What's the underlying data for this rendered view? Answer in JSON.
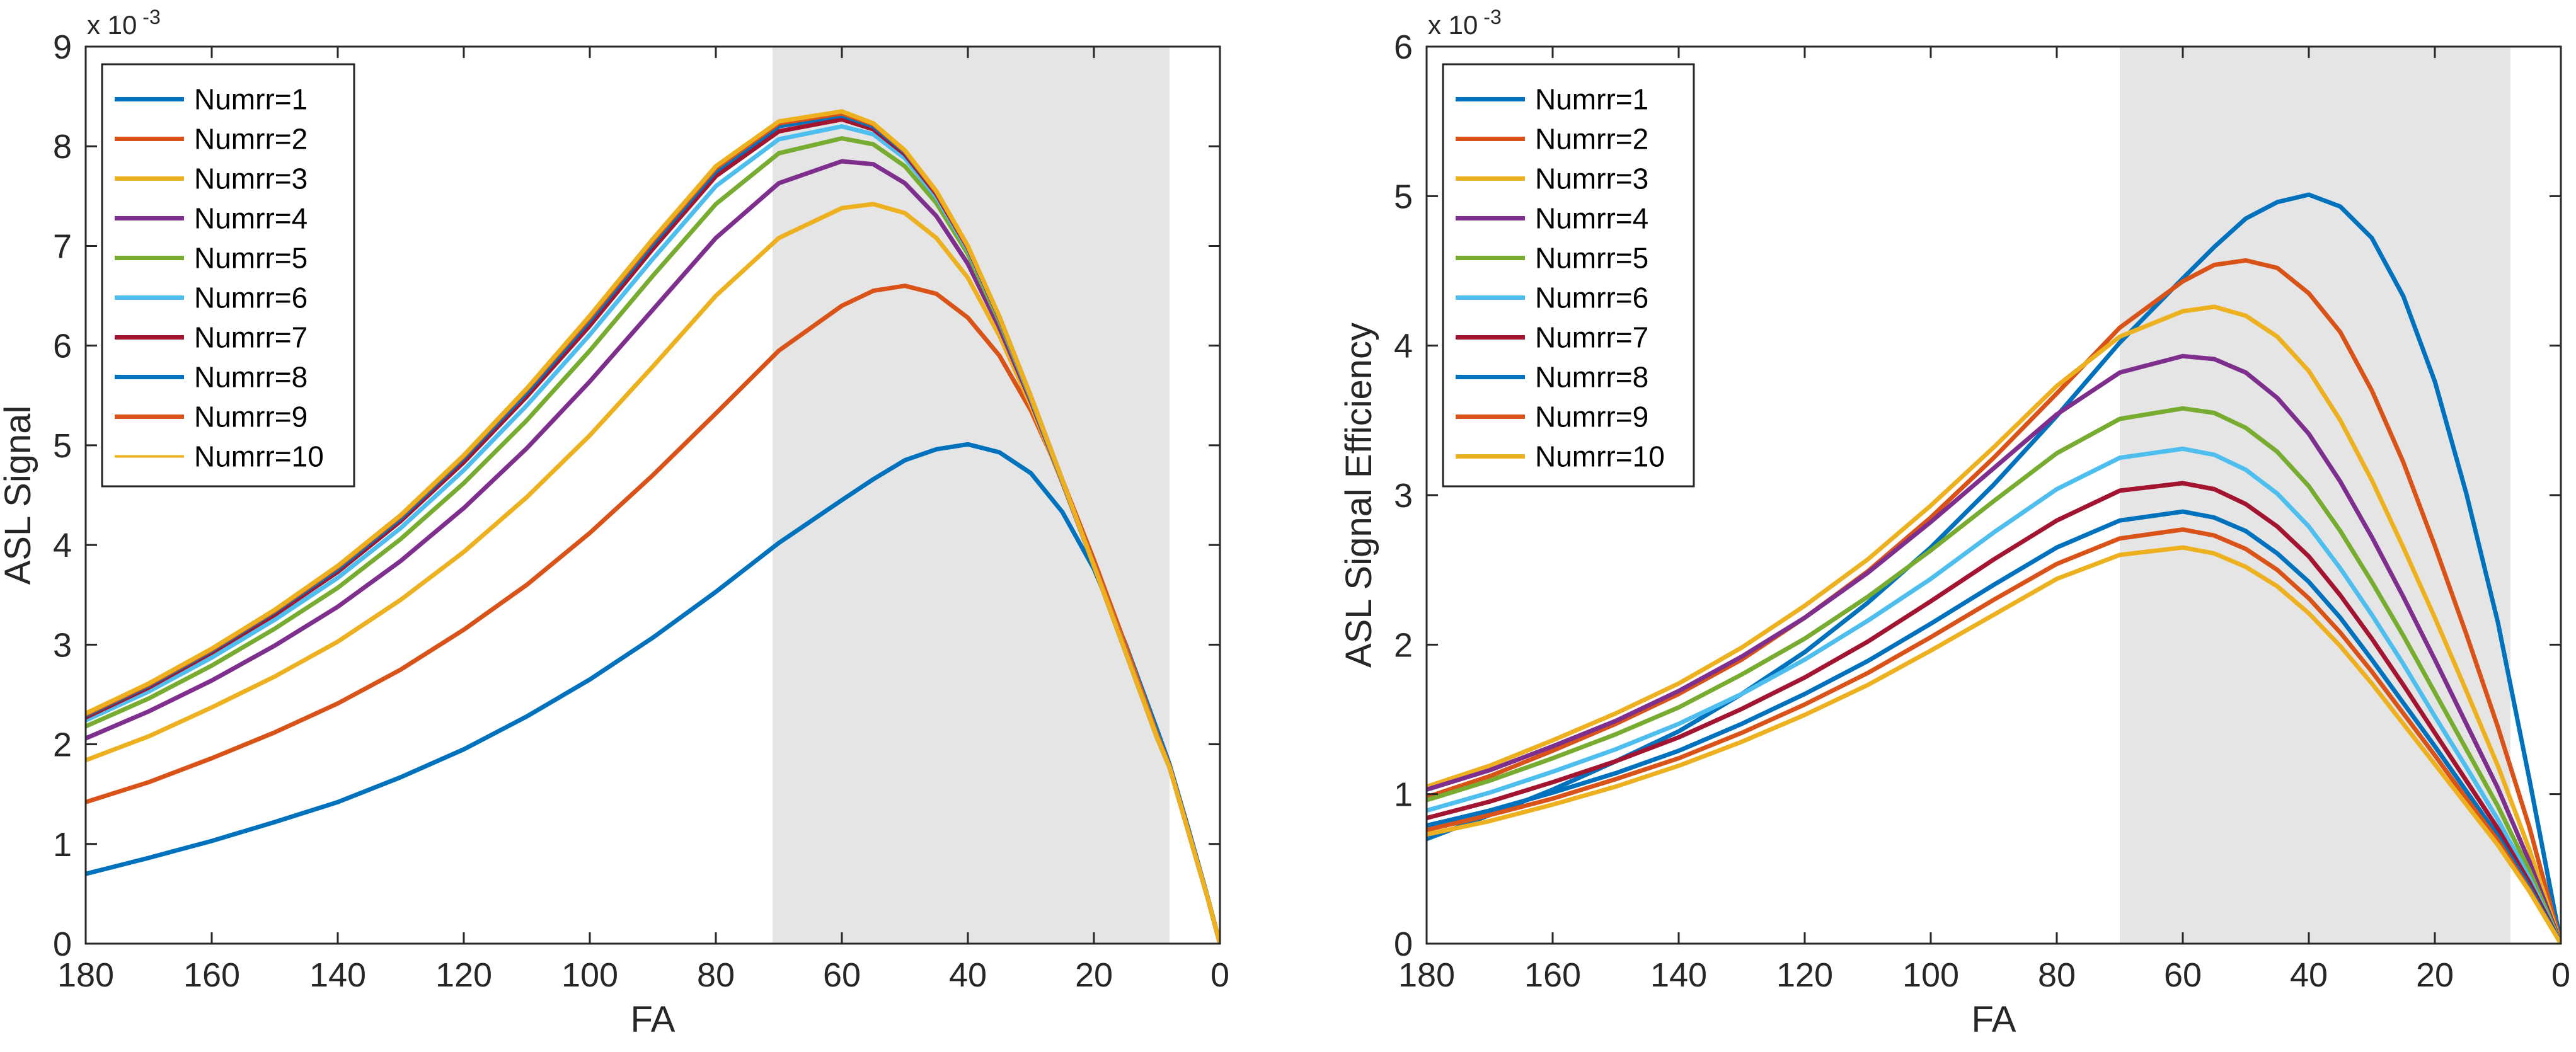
{
  "chart_data": [
    {
      "type": "line",
      "xlabel": "FA",
      "ylabel": "ASL Signal",
      "exponent_label": "x 10",
      "exponent_power": "-3",
      "xlim": [
        180,
        0
      ],
      "ylim": [
        0,
        9
      ],
      "xticks": [
        "180",
        "160",
        "140",
        "120",
        "100",
        "80",
        "60",
        "40",
        "20",
        "0"
      ],
      "yticks": [
        "0",
        "1",
        "2",
        "3",
        "4",
        "5",
        "6",
        "7",
        "8",
        "9"
      ],
      "shaded_x_range": [
        71,
        8
      ],
      "x": [
        180,
        170,
        160,
        150,
        140,
        130,
        120,
        110,
        100,
        90,
        80,
        70,
        60,
        55,
        50,
        45,
        40,
        35,
        30,
        25,
        20,
        15,
        10,
        8,
        5,
        2,
        0
      ],
      "series": [
        {
          "name": "Numrr=1",
          "color": "#0072BD",
          "width": 7,
          "values": [
            0.7,
            0.86,
            1.03,
            1.22,
            1.42,
            1.67,
            1.95,
            2.28,
            2.65,
            3.07,
            3.53,
            4.02,
            4.45,
            4.66,
            4.85,
            4.96,
            5.01,
            4.93,
            4.72,
            4.33,
            3.76,
            3.01,
            2.15,
            1.8,
            1.15,
            0.48,
            0.0
          ]
        },
        {
          "name": "Numrr=2",
          "color": "#D95319",
          "width": 7,
          "values": [
            1.42,
            1.62,
            1.86,
            2.12,
            2.41,
            2.75,
            3.15,
            3.6,
            4.12,
            4.7,
            5.32,
            5.95,
            6.4,
            6.55,
            6.6,
            6.52,
            6.28,
            5.9,
            5.35,
            4.65,
            3.85,
            3.0,
            2.1,
            1.78,
            1.13,
            0.47,
            0.0
          ]
        },
        {
          "name": "Numrr=3",
          "color": "#EDB120",
          "width": 7,
          "values": [
            1.84,
            2.08,
            2.37,
            2.68,
            3.03,
            3.45,
            3.93,
            4.48,
            5.1,
            5.79,
            6.5,
            7.08,
            7.38,
            7.42,
            7.33,
            7.08,
            6.68,
            6.1,
            5.4,
            4.62,
            3.8,
            2.95,
            2.08,
            1.77,
            1.12,
            0.47,
            0.0
          ]
        },
        {
          "name": "Numrr=4",
          "color": "#7E2F8E",
          "width": 7,
          "values": [
            2.06,
            2.33,
            2.64,
            2.99,
            3.38,
            3.84,
            4.37,
            4.97,
            5.64,
            6.36,
            7.08,
            7.63,
            7.85,
            7.82,
            7.63,
            7.3,
            6.82,
            6.18,
            5.44,
            4.63,
            3.79,
            2.94,
            2.07,
            1.77,
            1.12,
            0.47,
            0.0
          ]
        },
        {
          "name": "Numrr=5",
          "color": "#77AC30",
          "width": 7,
          "values": [
            2.18,
            2.46,
            2.79,
            3.16,
            3.57,
            4.06,
            4.62,
            5.25,
            5.95,
            6.7,
            7.42,
            7.93,
            8.08,
            8.02,
            7.8,
            7.43,
            6.92,
            6.24,
            5.47,
            4.64,
            3.79,
            2.93,
            2.07,
            1.77,
            1.12,
            0.47,
            0.0
          ]
        },
        {
          "name": "Numrr=6",
          "color": "#4DBEEE",
          "width": 7,
          "values": [
            2.24,
            2.53,
            2.87,
            3.25,
            3.67,
            4.17,
            4.75,
            5.4,
            6.11,
            6.87,
            7.6,
            8.07,
            8.2,
            8.12,
            7.88,
            7.49,
            6.96,
            6.27,
            5.48,
            4.64,
            3.79,
            2.93,
            2.07,
            1.77,
            1.12,
            0.47,
            0.0
          ]
        },
        {
          "name": "Numrr=7",
          "color": "#A2142F",
          "width": 7,
          "values": [
            2.27,
            2.57,
            2.92,
            3.3,
            3.73,
            4.24,
            4.83,
            5.49,
            6.2,
            6.97,
            7.7,
            8.15,
            8.27,
            8.17,
            7.92,
            7.52,
            6.98,
            6.28,
            5.49,
            4.65,
            3.79,
            2.93,
            2.07,
            1.77,
            1.12,
            0.47,
            0.0
          ]
        },
        {
          "name": "Numrr=8",
          "color": "#0072BD",
          "width": 7,
          "values": [
            2.29,
            2.59,
            2.94,
            3.33,
            3.76,
            4.27,
            4.87,
            5.53,
            6.25,
            7.02,
            7.75,
            8.2,
            8.31,
            8.2,
            7.94,
            7.54,
            6.99,
            6.29,
            5.49,
            4.65,
            3.79,
            2.93,
            2.07,
            1.77,
            1.12,
            0.47,
            0.0
          ]
        },
        {
          "name": "Numrr=9",
          "color": "#D95319",
          "width": 7,
          "values": [
            2.3,
            2.6,
            2.95,
            3.34,
            3.78,
            4.29,
            4.89,
            5.56,
            6.28,
            7.05,
            7.78,
            8.23,
            8.33,
            8.22,
            7.95,
            7.54,
            6.99,
            6.29,
            5.49,
            4.65,
            3.79,
            2.93,
            2.07,
            1.77,
            1.12,
            0.47,
            0.0
          ]
        },
        {
          "name": "Numrr=10",
          "color": "#EDB120",
          "width": 7,
          "values": [
            2.31,
            2.61,
            2.96,
            3.35,
            3.79,
            4.3,
            4.9,
            5.57,
            6.3,
            7.07,
            7.8,
            8.25,
            8.35,
            8.23,
            7.96,
            7.55,
            7.0,
            6.29,
            5.49,
            4.65,
            3.79,
            2.93,
            2.07,
            1.77,
            1.12,
            0.47,
            0.0
          ]
        }
      ]
    },
    {
      "type": "line",
      "xlabel": "FA",
      "ylabel": "ASL Signal Efficiency",
      "exponent_label": "x 10",
      "exponent_power": "-3",
      "xlim": [
        180,
        0
      ],
      "ylim": [
        0,
        6
      ],
      "xticks": [
        "180",
        "160",
        "140",
        "120",
        "100",
        "80",
        "60",
        "40",
        "20",
        "0"
      ],
      "yticks": [
        "0",
        "1",
        "2",
        "3",
        "4",
        "5",
        "6"
      ],
      "shaded_x_range": [
        70,
        8
      ],
      "x": [
        180,
        170,
        160,
        150,
        140,
        130,
        120,
        110,
        100,
        90,
        80,
        70,
        60,
        55,
        50,
        45,
        40,
        35,
        30,
        25,
        20,
        15,
        10,
        5,
        0
      ],
      "series": [
        {
          "name": "Numrr=1",
          "color": "#0072BD",
          "width": 7,
          "values": [
            0.7,
            0.86,
            1.03,
            1.22,
            1.42,
            1.67,
            1.95,
            2.28,
            2.65,
            3.07,
            3.53,
            4.02,
            4.45,
            4.66,
            4.85,
            4.96,
            5.01,
            4.93,
            4.72,
            4.33,
            3.76,
            3.01,
            2.15,
            1.1,
            0.0
          ]
        },
        {
          "name": "Numrr=2",
          "color": "#D95319",
          "width": 7,
          "values": [
            0.98,
            1.12,
            1.29,
            1.47,
            1.67,
            1.9,
            2.18,
            2.49,
            2.85,
            3.25,
            3.68,
            4.12,
            4.43,
            4.54,
            4.57,
            4.52,
            4.35,
            4.09,
            3.7,
            3.22,
            2.66,
            2.07,
            1.45,
            0.78,
            0.0
          ]
        },
        {
          "name": "Numrr=3",
          "color": "#EDB120",
          "width": 7,
          "values": [
            1.05,
            1.19,
            1.36,
            1.54,
            1.74,
            1.98,
            2.26,
            2.57,
            2.93,
            3.32,
            3.73,
            4.06,
            4.23,
            4.26,
            4.2,
            4.06,
            3.83,
            3.5,
            3.1,
            2.65,
            2.18,
            1.69,
            1.19,
            0.63,
            0.0
          ]
        },
        {
          "name": "Numrr=4",
          "color": "#7E2F8E",
          "width": 7,
          "values": [
            1.03,
            1.16,
            1.32,
            1.49,
            1.69,
            1.92,
            2.18,
            2.48,
            2.82,
            3.18,
            3.54,
            3.82,
            3.93,
            3.91,
            3.82,
            3.65,
            3.41,
            3.09,
            2.72,
            2.32,
            1.9,
            1.47,
            1.04,
            0.55,
            0.0
          ]
        },
        {
          "name": "Numrr=5",
          "color": "#77AC30",
          "width": 7,
          "values": [
            0.96,
            1.09,
            1.24,
            1.4,
            1.58,
            1.8,
            2.04,
            2.32,
            2.63,
            2.96,
            3.28,
            3.51,
            3.58,
            3.55,
            3.45,
            3.29,
            3.06,
            2.76,
            2.42,
            2.06,
            1.68,
            1.3,
            0.92,
            0.49,
            0.0
          ]
        },
        {
          "name": "Numrr=6",
          "color": "#4DBEEE",
          "width": 7,
          "values": [
            0.89,
            1.01,
            1.15,
            1.3,
            1.47,
            1.67,
            1.9,
            2.16,
            2.44,
            2.75,
            3.04,
            3.25,
            3.31,
            3.27,
            3.17,
            3.01,
            2.79,
            2.51,
            2.2,
            1.87,
            1.52,
            1.18,
            0.83,
            0.44,
            0.0
          ]
        },
        {
          "name": "Numrr=7",
          "color": "#A2142F",
          "width": 7,
          "values": [
            0.84,
            0.95,
            1.08,
            1.22,
            1.38,
            1.57,
            1.78,
            2.02,
            2.29,
            2.57,
            2.83,
            3.03,
            3.08,
            3.04,
            2.94,
            2.79,
            2.59,
            2.33,
            2.04,
            1.73,
            1.41,
            1.09,
            0.77,
            0.41,
            0.0
          ]
        },
        {
          "name": "Numrr=8",
          "color": "#0072BD",
          "width": 7,
          "values": [
            0.79,
            0.89,
            1.01,
            1.14,
            1.29,
            1.47,
            1.67,
            1.89,
            2.14,
            2.4,
            2.65,
            2.83,
            2.89,
            2.85,
            2.76,
            2.61,
            2.42,
            2.18,
            1.9,
            1.61,
            1.32,
            1.02,
            0.72,
            0.38,
            0.0
          ]
        },
        {
          "name": "Numrr=9",
          "color": "#D95319",
          "width": 7,
          "values": [
            0.76,
            0.86,
            0.97,
            1.1,
            1.24,
            1.41,
            1.6,
            1.81,
            2.05,
            2.3,
            2.54,
            2.71,
            2.77,
            2.73,
            2.64,
            2.5,
            2.31,
            2.08,
            1.82,
            1.54,
            1.26,
            0.97,
            0.69,
            0.36,
            0.0
          ]
        },
        {
          "name": "Numrr=10",
          "color": "#EDB120",
          "width": 7,
          "values": [
            0.73,
            0.82,
            0.93,
            1.05,
            1.19,
            1.35,
            1.53,
            1.73,
            1.96,
            2.2,
            2.44,
            2.6,
            2.65,
            2.61,
            2.52,
            2.39,
            2.21,
            1.99,
            1.74,
            1.47,
            1.2,
            0.93,
            0.66,
            0.35,
            0.0
          ]
        }
      ]
    }
  ]
}
